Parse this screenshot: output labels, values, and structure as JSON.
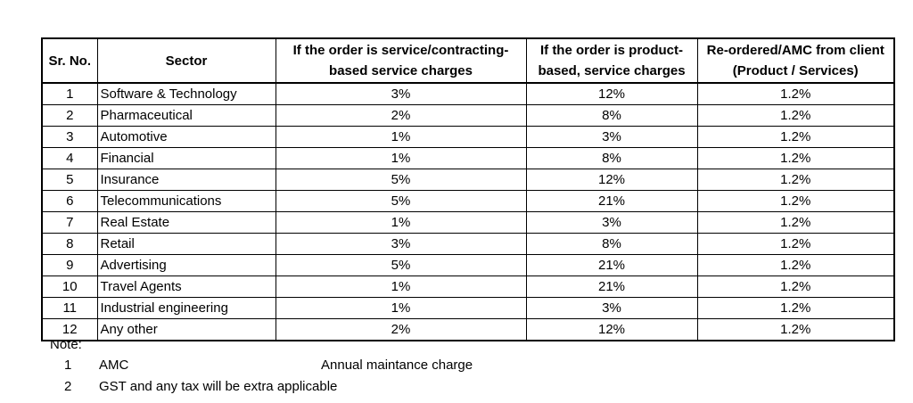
{
  "table": {
    "headers": {
      "sr_no": "Sr. No.",
      "sector": "Sector",
      "service_line1": "If the order is service/contracting-",
      "service_line2": "based service charges",
      "product_line1": "If the order is product-",
      "product_line2": "based, service charges",
      "reorder_line1": "Re-ordered/AMC from client",
      "reorder_line2": "(Product / Services)"
    },
    "rows": [
      {
        "sr": "1",
        "sector": "Software & Technology",
        "service": "3%",
        "product": "12%",
        "reorder": "1.2%"
      },
      {
        "sr": "2",
        "sector": "Pharmaceutical",
        "service": "2%",
        "product": "8%",
        "reorder": "1.2%"
      },
      {
        "sr": "3",
        "sector": "Automotive",
        "service": "1%",
        "product": "3%",
        "reorder": "1.2%"
      },
      {
        "sr": "4",
        "sector": "Financial",
        "service": "1%",
        "product": "8%",
        "reorder": "1.2%"
      },
      {
        "sr": "5",
        "sector": "Insurance",
        "service": "5%",
        "product": "12%",
        "reorder": "1.2%"
      },
      {
        "sr": "6",
        "sector": "Telecommunications",
        "service": "5%",
        "product": "21%",
        "reorder": "1.2%"
      },
      {
        "sr": "7",
        "sector": "Real Estate",
        "service": "1%",
        "product": "3%",
        "reorder": "1.2%"
      },
      {
        "sr": "8",
        "sector": "Retail",
        "service": "3%",
        "product": "8%",
        "reorder": "1.2%"
      },
      {
        "sr": "9",
        "sector": "Advertising",
        "service": "5%",
        "product": "21%",
        "reorder": "1.2%"
      },
      {
        "sr": "10",
        "sector": "Travel Agents",
        "service": "1%",
        "product": "21%",
        "reorder": "1.2%"
      },
      {
        "sr": "11",
        "sector": "Industrial engineering",
        "service": "1%",
        "product": "3%",
        "reorder": "1.2%"
      },
      {
        "sr": "12",
        "sector": "Any other",
        "service": "2%",
        "product": "12%",
        "reorder": "1.2%"
      }
    ]
  },
  "notes": {
    "title": "Note:",
    "items": [
      {
        "num": "1",
        "text": "AMC",
        "desc": "Annual maintance charge"
      },
      {
        "num": "2",
        "text": "GST and any tax will be extra applicable",
        "desc": ""
      }
    ]
  }
}
